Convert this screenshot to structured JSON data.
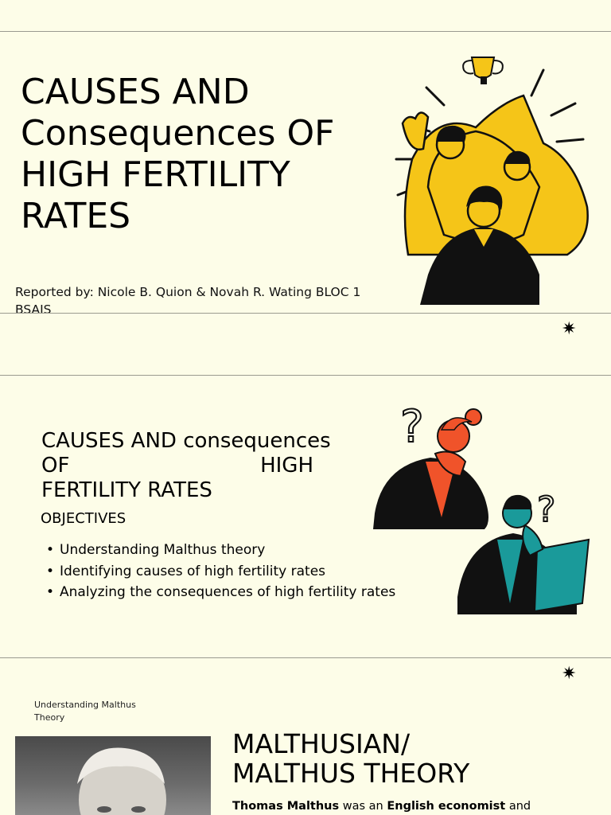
{
  "slide1": {
    "title_lines": [
      "CAUSES AND",
      "Consequences OF",
      "HIGH FERTILITY",
      "RATES"
    ],
    "reported_by": "Reported by: Nicole B. Quion & Novah R. Wating BLOC 1 BSAIS"
  },
  "slide2": {
    "title_line1": "CAUSES AND consequences",
    "title_line2a": "OF",
    "title_line2b": "HIGH",
    "title_line3": "FERTILITY RATES",
    "objectives_heading": "OBJECTIVES",
    "objectives": [
      "Understanding Malthus theory",
      "Identifying causes of high fertility rates",
      "Analyzing the consequences of high fertility rates"
    ]
  },
  "slide3": {
    "small_label": "Understanding Malthus Theory",
    "title_lines": [
      "MALTHUSIAN/",
      "MALTHUS THEORY"
    ],
    "body_name": "Thomas Malthus",
    "body_mid": " was an ",
    "body_bold2": "English economist",
    "body_end": " and"
  },
  "decor": {
    "sparkle_glyph": "✷",
    "colors": {
      "background": "#fdfde8",
      "yellow": "#f5c518",
      "orange": "#f0532a",
      "teal": "#1a9a9a",
      "black": "#111111"
    }
  }
}
